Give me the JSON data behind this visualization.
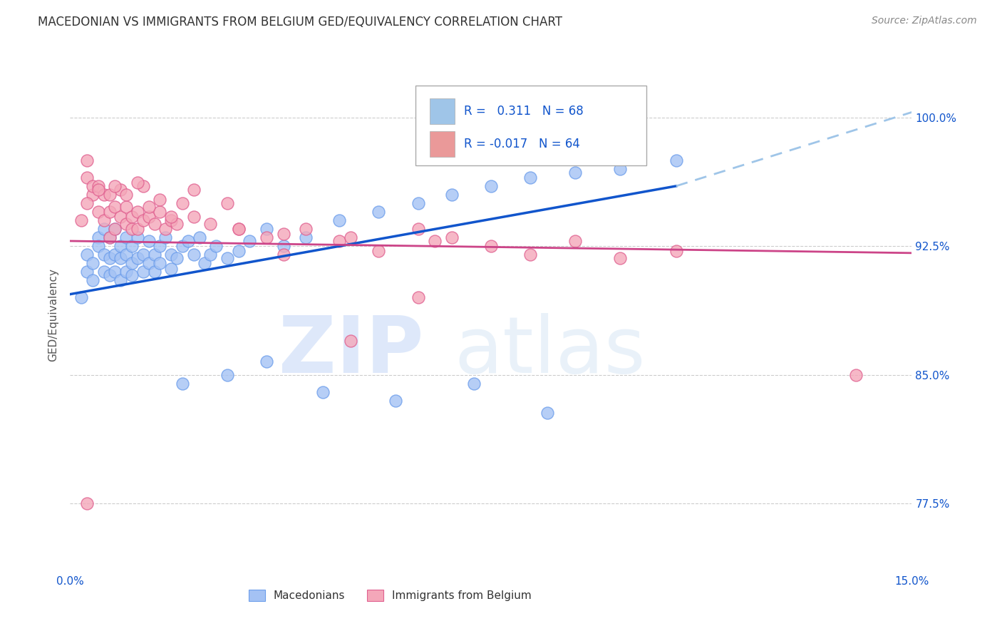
{
  "title": "MACEDONIAN VS IMMIGRANTS FROM BELGIUM GED/EQUIVALENCY CORRELATION CHART",
  "source": "Source: ZipAtlas.com",
  "ylabel": "GED/Equivalency",
  "yticks": [
    "77.5%",
    "85.0%",
    "92.5%",
    "100.0%"
  ],
  "ytick_vals": [
    0.775,
    0.85,
    0.925,
    1.0
  ],
  "xlim": [
    0.0,
    0.15
  ],
  "ylim": [
    0.735,
    1.035
  ],
  "legend_color1": "#9fc5e8",
  "legend_color2": "#ea9999",
  "macedonian_color": "#a4c2f4",
  "belgium_color": "#f4a7b9",
  "mac_edge_color": "#6d9eeb",
  "bel_edge_color": "#e06090",
  "trendline1_color": "#1155cc",
  "trendline2_color": "#cc4488",
  "trendline_ext_color": "#9fc5e8",
  "grid_color": "#cccccc",
  "background_color": "#ffffff",
  "title_color": "#333333",
  "axis_label_color": "#1155cc",
  "ytick_color": "#1155cc",
  "mac_scatter_x": [
    0.002,
    0.003,
    0.003,
    0.004,
    0.004,
    0.005,
    0.005,
    0.006,
    0.006,
    0.006,
    0.007,
    0.007,
    0.007,
    0.008,
    0.008,
    0.008,
    0.009,
    0.009,
    0.009,
    0.01,
    0.01,
    0.01,
    0.011,
    0.011,
    0.011,
    0.012,
    0.012,
    0.013,
    0.013,
    0.014,
    0.014,
    0.015,
    0.015,
    0.016,
    0.016,
    0.017,
    0.018,
    0.018,
    0.019,
    0.02,
    0.021,
    0.022,
    0.023,
    0.024,
    0.025,
    0.026,
    0.028,
    0.03,
    0.032,
    0.035,
    0.038,
    0.042,
    0.048,
    0.055,
    0.062,
    0.068,
    0.075,
    0.082,
    0.09,
    0.098,
    0.108,
    0.02,
    0.028,
    0.035,
    0.045,
    0.058,
    0.072,
    0.085
  ],
  "mac_scatter_y": [
    0.895,
    0.92,
    0.91,
    0.915,
    0.905,
    0.93,
    0.925,
    0.935,
    0.92,
    0.91,
    0.93,
    0.918,
    0.908,
    0.92,
    0.935,
    0.91,
    0.918,
    0.925,
    0.905,
    0.92,
    0.91,
    0.93,
    0.915,
    0.925,
    0.908,
    0.918,
    0.93,
    0.91,
    0.92,
    0.915,
    0.928,
    0.91,
    0.92,
    0.915,
    0.925,
    0.93,
    0.912,
    0.92,
    0.918,
    0.925,
    0.928,
    0.92,
    0.93,
    0.915,
    0.92,
    0.925,
    0.918,
    0.922,
    0.928,
    0.935,
    0.925,
    0.93,
    0.94,
    0.945,
    0.95,
    0.955,
    0.96,
    0.965,
    0.968,
    0.97,
    0.975,
    0.845,
    0.85,
    0.858,
    0.84,
    0.835,
    0.845,
    0.828
  ],
  "bel_scatter_x": [
    0.002,
    0.003,
    0.003,
    0.004,
    0.004,
    0.005,
    0.005,
    0.006,
    0.006,
    0.007,
    0.007,
    0.008,
    0.008,
    0.009,
    0.009,
    0.01,
    0.01,
    0.011,
    0.011,
    0.012,
    0.012,
    0.013,
    0.013,
    0.014,
    0.015,
    0.016,
    0.017,
    0.018,
    0.019,
    0.02,
    0.022,
    0.025,
    0.028,
    0.03,
    0.035,
    0.038,
    0.042,
    0.048,
    0.055,
    0.062,
    0.068,
    0.075,
    0.082,
    0.09,
    0.098,
    0.108,
    0.003,
    0.005,
    0.007,
    0.008,
    0.01,
    0.012,
    0.014,
    0.016,
    0.018,
    0.022,
    0.03,
    0.038,
    0.05,
    0.065,
    0.003,
    0.05,
    0.062,
    0.14
  ],
  "bel_scatter_y": [
    0.94,
    0.965,
    0.975,
    0.955,
    0.96,
    0.945,
    0.96,
    0.955,
    0.94,
    0.93,
    0.945,
    0.935,
    0.948,
    0.942,
    0.958,
    0.938,
    0.948,
    0.942,
    0.935,
    0.945,
    0.935,
    0.94,
    0.96,
    0.942,
    0.938,
    0.945,
    0.935,
    0.94,
    0.938,
    0.95,
    0.942,
    0.938,
    0.95,
    0.935,
    0.93,
    0.92,
    0.935,
    0.928,
    0.922,
    0.935,
    0.93,
    0.925,
    0.92,
    0.928,
    0.918,
    0.922,
    0.95,
    0.958,
    0.955,
    0.96,
    0.955,
    0.962,
    0.948,
    0.952,
    0.942,
    0.958,
    0.935,
    0.932,
    0.93,
    0.928,
    0.775,
    0.87,
    0.895,
    0.85
  ],
  "trendline1_x0": 0.0,
  "trendline1_y0": 0.897,
  "trendline1_x1": 0.108,
  "trendline1_y1": 0.96,
  "trendline1_xext": 0.15,
  "trendline1_yext": 1.003,
  "trendline2_x0": 0.0,
  "trendline2_y0": 0.928,
  "trendline2_x1": 0.15,
  "trendline2_y1": 0.921
}
